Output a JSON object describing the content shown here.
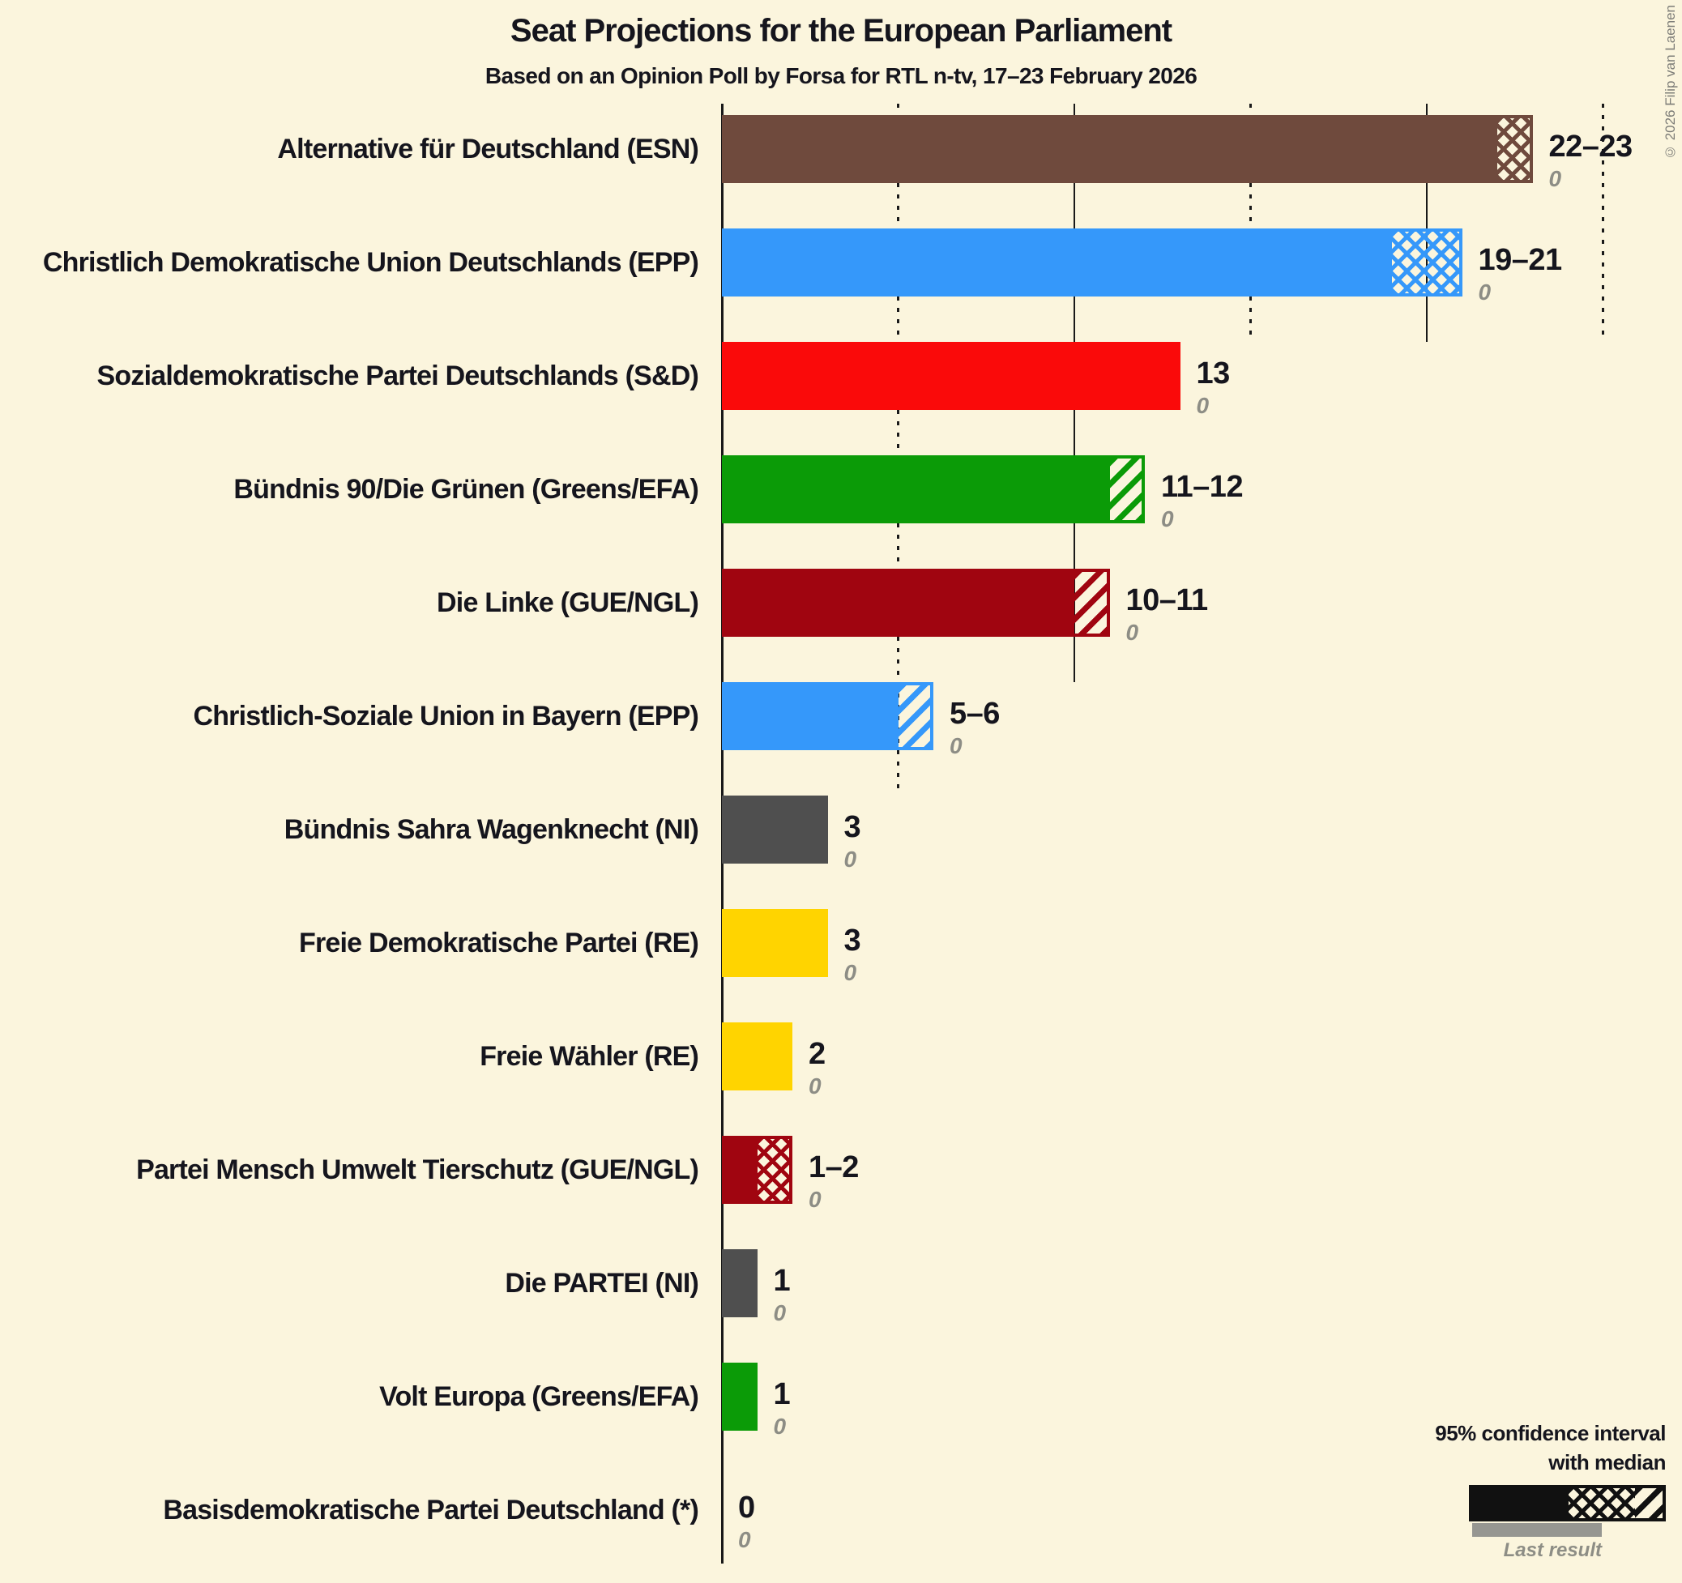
{
  "header": {
    "title": "Seat Projections for the European Parliament",
    "subtitle": "Based on an Opinion Poll by Forsa for RTL n-tv, 17–23 February 2026"
  },
  "copyright": "© 2026 Filip van Laenen",
  "legend": {
    "line1": "95% confidence interval",
    "line2": "with median",
    "last_result_label": "Last result"
  },
  "colors": {
    "background": "#fbf5dd",
    "text": "#15151d",
    "muted": "#8d8d85",
    "gridline": "#191919",
    "legend_sample": "#111111",
    "legend_last_result_bar": "#969691"
  },
  "chart_data": {
    "type": "bar",
    "orientation": "horizontal",
    "title": "Seat Projections for the European Parliament",
    "subtitle": "Based on an Opinion Poll by Forsa for RTL n-tv, 17–23 February 2026",
    "x_unit": "seats",
    "xlim": [
      0,
      27
    ],
    "gridlines": {
      "dotted_at": [
        5,
        15,
        25
      ],
      "solid_at": [
        10,
        20
      ]
    },
    "grid": true,
    "legend_position": "bottom-right",
    "series": [
      {
        "name": "Alternative für Deutschland (ESN)",
        "value_label": "22–23",
        "ci_low": 22,
        "ci_high": 23,
        "hatch": "cross",
        "color": "#6f4a3d",
        "last_result": "0"
      },
      {
        "name": "Christlich Demokratische Union Deutschlands (EPP)",
        "value_label": "19–21",
        "ci_low": 19,
        "ci_high": 21,
        "hatch": "cross",
        "color": "#3598fa",
        "last_result": "0"
      },
      {
        "name": "Sozialdemokratische Partei Deutschlands (S&D)",
        "value_label": "13",
        "ci_low": 13,
        "ci_high": 13,
        "hatch": "none",
        "color": "#fa0a0a",
        "last_result": "0"
      },
      {
        "name": "Bündnis 90/Die Grünen (Greens/EFA)",
        "value_label": "11–12",
        "ci_low": 11,
        "ci_high": 12,
        "hatch": "diag",
        "color": "#0b9b07",
        "last_result": "0"
      },
      {
        "name": "Die Linke (GUE/NGL)",
        "value_label": "10–11",
        "ci_low": 10,
        "ci_high": 11,
        "hatch": "diag",
        "color": "#a00510",
        "last_result": "0"
      },
      {
        "name": "Christlich-Soziale Union in Bayern (EPP)",
        "value_label": "5–6",
        "ci_low": 5,
        "ci_high": 6,
        "hatch": "diag",
        "color": "#3598fa",
        "last_result": "0"
      },
      {
        "name": "Bündnis Sahra Wagenknecht (NI)",
        "value_label": "3",
        "ci_low": 3,
        "ci_high": 3,
        "hatch": "none",
        "color": "#4f4f4f",
        "last_result": "0"
      },
      {
        "name": "Freie Demokratische Partei (RE)",
        "value_label": "3",
        "ci_low": 3,
        "ci_high": 3,
        "hatch": "none",
        "color": "#ffd400",
        "last_result": "0"
      },
      {
        "name": "Freie Wähler (RE)",
        "value_label": "2",
        "ci_low": 2,
        "ci_high": 2,
        "hatch": "none",
        "color": "#ffd400",
        "last_result": "0"
      },
      {
        "name": "Partei Mensch Umwelt Tierschutz (GUE/NGL)",
        "value_label": "1–2",
        "ci_low": 1,
        "ci_high": 2,
        "hatch": "cross",
        "color": "#a00510",
        "last_result": "0"
      },
      {
        "name": "Die PARTEI (NI)",
        "value_label": "1",
        "ci_low": 1,
        "ci_high": 1,
        "hatch": "none",
        "color": "#4f4f4f",
        "last_result": "0"
      },
      {
        "name": "Volt Europa (Greens/EFA)",
        "value_label": "1",
        "ci_low": 1,
        "ci_high": 1,
        "hatch": "none",
        "color": "#0b9b07",
        "last_result": "0"
      },
      {
        "name": "Basisdemokratische Partei Deutschland (*)",
        "value_label": "0",
        "ci_low": 0,
        "ci_high": 0,
        "hatch": "none",
        "color": "#4f4f4f",
        "last_result": "0"
      }
    ]
  }
}
